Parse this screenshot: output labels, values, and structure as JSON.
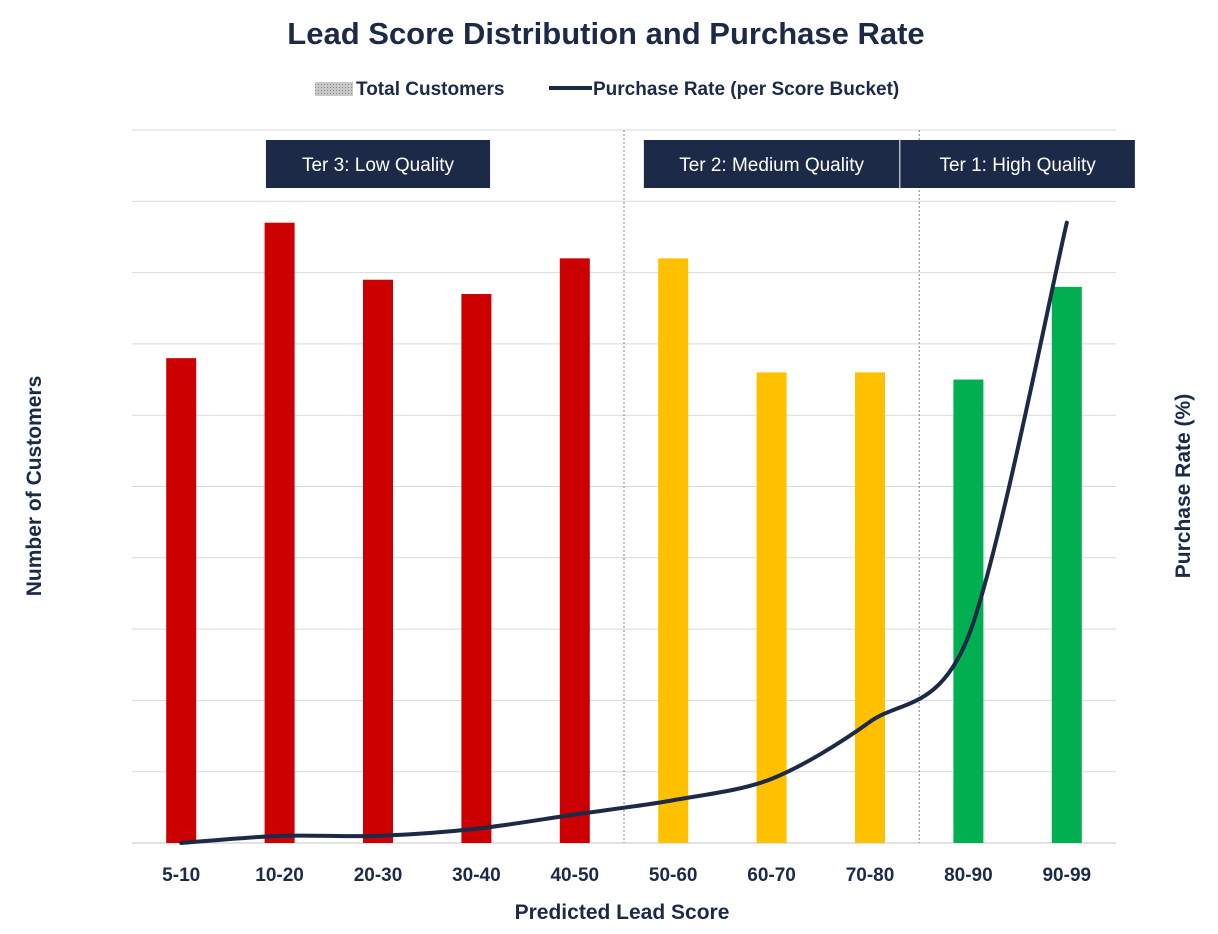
{
  "chart_data": {
    "type": "bar",
    "title": "Lead Score Distribution and Purchase Rate",
    "xlabel": "Predicted Lead Score",
    "ylabel": "Number of Customers",
    "y2label": "Purchase Rate (%)",
    "categories": [
      "5-10",
      "10-20",
      "20-30",
      "30-40",
      "40-50",
      "50-60",
      "60-70",
      "70-80",
      "80-90",
      "90-99"
    ],
    "ylim": [
      0,
      10
    ],
    "y2lim": [
      0,
      10
    ],
    "grid": true,
    "legend_position": "top-center",
    "series": [
      {
        "name": "Total Customers",
        "kind": "bar",
        "axis": "left",
        "values": [
          6.8,
          8.7,
          7.9,
          7.7,
          8.2,
          8.2,
          6.6,
          6.6,
          6.5,
          7.8
        ],
        "colors": [
          "#cc0000",
          "#cc0000",
          "#cc0000",
          "#cc0000",
          "#cc0000",
          "#ffc000",
          "#ffc000",
          "#ffc000",
          "#00b050",
          "#00b050"
        ]
      },
      {
        "name": "Purchase Rate (per Score Bucket)",
        "kind": "line",
        "axis": "right",
        "color": "#1c2a48",
        "values": [
          0.0,
          0.1,
          0.1,
          0.2,
          0.4,
          0.6,
          0.9,
          1.7,
          2.9,
          8.7
        ]
      }
    ],
    "tiers": [
      {
        "label": "Ter 3: Low Quality",
        "from": 0,
        "to": 4
      },
      {
        "label": "Ter 2: Medium Quality",
        "from": 5,
        "to": 7
      },
      {
        "label": "Ter 1: High Quality",
        "from": 8,
        "to": 9
      }
    ],
    "colors": {
      "low": "#cc0000",
      "medium": "#ffc000",
      "high": "#00b050",
      "line": "#1c2a48",
      "tier_box": "#1c2a48",
      "grid": "#d9d9d9",
      "divider": "#808080"
    }
  }
}
